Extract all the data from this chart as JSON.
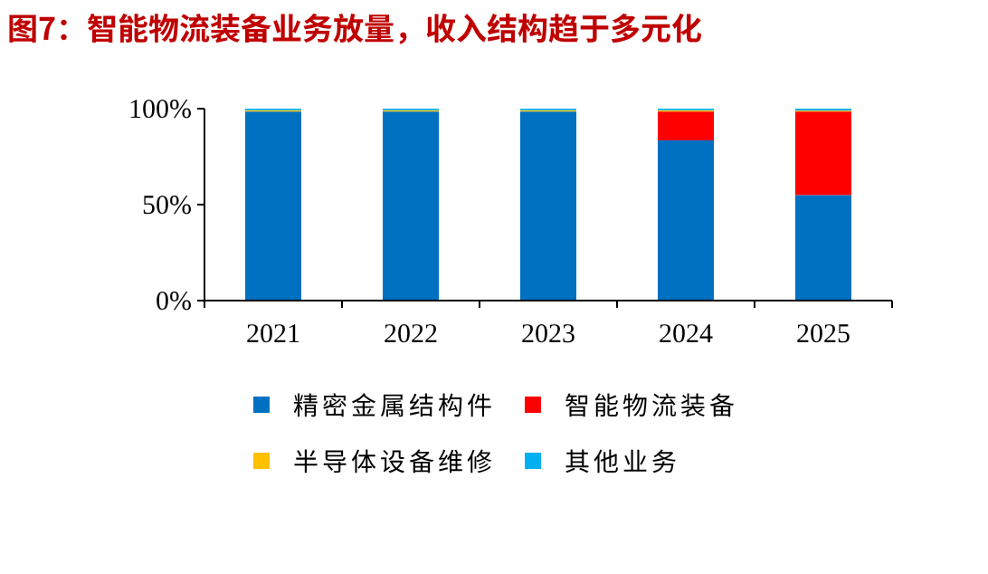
{
  "chart_data": {
    "type": "bar",
    "stacked": true,
    "title": "图7：智能物流装备业务放量，收入结构趋于多元化",
    "categories": [
      "2021",
      "2022",
      "2023",
      "2024",
      "2025"
    ],
    "series": [
      {
        "name": "精密金属结构件",
        "color": "#0070c0",
        "values": [
          98.5,
          98.5,
          98.5,
          83.5,
          55
        ]
      },
      {
        "name": "智能物流装备",
        "color": "#ff0000",
        "values": [
          0,
          0,
          0,
          15,
          43.5
        ]
      },
      {
        "name": "半导体设备维修",
        "color": "#ffc000",
        "values": [
          0.7,
          0.7,
          0.7,
          0.7,
          0.5
        ]
      },
      {
        "name": "其他业务",
        "color": "#00b0f0",
        "values": [
          0.8,
          0.8,
          0.8,
          0.8,
          1
        ]
      }
    ],
    "ylim": [
      0,
      100
    ],
    "yticks": [
      {
        "value": 0,
        "label": "0%"
      },
      {
        "value": 50,
        "label": "50%"
      },
      {
        "value": 100,
        "label": "100%"
      }
    ],
    "grid": false,
    "legend": "bottom"
  }
}
